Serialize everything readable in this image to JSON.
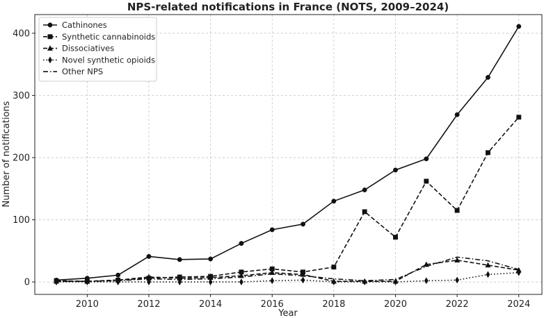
{
  "chart_data": {
    "type": "line",
    "title": "NPS-related notifications in France (NOTS, 2009–2024)",
    "xlabel": "Year",
    "ylabel": "Number of notifications",
    "x": [
      2009,
      2010,
      2011,
      2012,
      2013,
      2014,
      2015,
      2016,
      2017,
      2018,
      2019,
      2020,
      2021,
      2022,
      2023,
      2024
    ],
    "xticks": [
      2010,
      2012,
      2014,
      2016,
      2018,
      2020,
      2022,
      2024
    ],
    "yticks": [
      0,
      100,
      200,
      300,
      400
    ],
    "xlim": [
      2008.3,
      2024.75
    ],
    "ylim": [
      -20,
      430
    ],
    "grid": true,
    "legend_position": "top-left",
    "series": [
      {
        "name": "Cathinones",
        "values": [
          3,
          6,
          11,
          41,
          36,
          37,
          62,
          84,
          93,
          130,
          148,
          180,
          198,
          269,
          329,
          411
        ],
        "marker": "circle",
        "dash": "solid"
      },
      {
        "name": "Synthetic cannabinoids",
        "values": [
          2,
          1,
          3,
          6,
          8,
          9,
          16,
          21,
          16,
          24,
          113,
          72,
          162,
          115,
          208,
          265
        ],
        "marker": "square",
        "dash": "dashed"
      },
      {
        "name": "Dissociatives",
        "values": [
          1,
          1,
          3,
          8,
          6,
          7,
          10,
          15,
          12,
          1,
          1,
          1,
          28,
          35,
          27,
          19
        ],
        "marker": "triangle",
        "dash": "dashed"
      },
      {
        "name": "Novel synthetic opioids",
        "values": [
          0,
          0,
          0,
          0,
          0,
          0,
          0,
          2,
          3,
          0,
          0,
          0,
          2,
          3,
          12,
          15
        ],
        "marker": "diamond",
        "dash": "dotted"
      },
      {
        "name": "Other NPS",
        "values": [
          1,
          1,
          2,
          5,
          4,
          5,
          8,
          13,
          10,
          5,
          2,
          4,
          25,
          40,
          34,
          20
        ],
        "marker": "none",
        "dash": "dashdot"
      }
    ]
  }
}
